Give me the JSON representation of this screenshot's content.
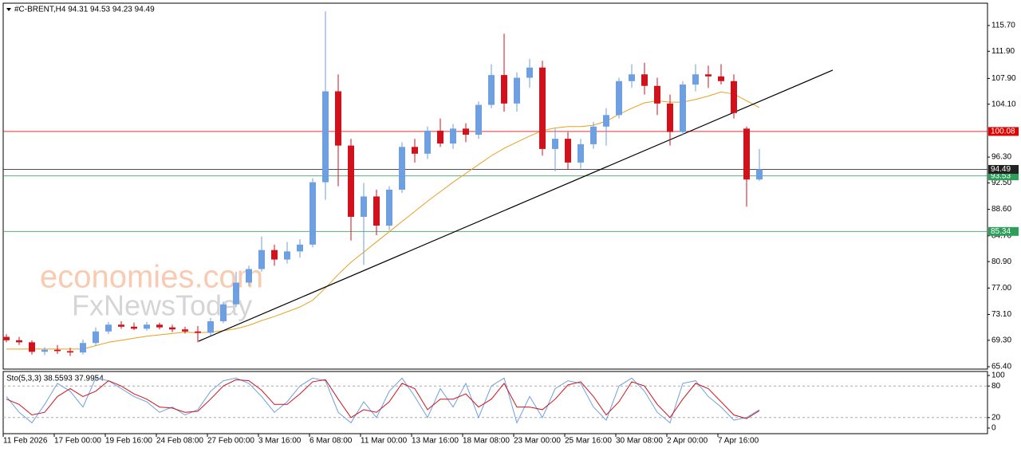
{
  "chart_data": {
    "type": "candlestick",
    "title": "#C-BRENT,H4  94.31 94.53 94.23 94.49",
    "watermark": [
      "economies.com",
      "FxNewsToday"
    ],
    "categories": [
      "11 Feb 2026",
      null,
      null,
      null,
      "17 Feb 00:00",
      null,
      null,
      null,
      "19 Feb 16:00",
      null,
      null,
      null,
      "24 Feb 08:00",
      null,
      null,
      null,
      "27 Feb 00:00",
      null,
      null,
      null,
      "3 Mar 16:00",
      null,
      null,
      null,
      "6 Mar 08:00",
      null,
      null,
      null,
      "11 Mar 00:00",
      null,
      null,
      null,
      "13 Mar 16:00",
      null,
      null,
      null,
      "18 Mar 08:00",
      null,
      null,
      null,
      "23 Mar 00:00",
      null,
      null,
      null,
      "25 Mar 16:00",
      null,
      null,
      null,
      "30 Mar 08:00",
      null,
      null,
      null,
      "2 Apr 00:00",
      null,
      null,
      null,
      "7 Apr 16:00",
      null,
      null,
      null
    ],
    "candles": {
      "up_color": "#6e9fe0",
      "down_color": "#d0121c",
      "open": [
        69.8,
        69.3,
        69.0,
        67.6,
        67.9,
        67.7,
        67.5,
        68.9,
        70.6,
        71.6,
        71.3,
        71.0,
        71.6,
        71.2,
        70.9,
        70.6,
        70.4,
        72.1,
        74.6,
        77.8,
        79.8,
        82.6,
        81.2,
        82.4,
        83.4,
        92.6,
        106.0,
        98.0,
        87.5,
        90.5,
        86.2,
        91.5,
        97.8,
        96.8,
        100.2,
        98.3,
        100.5,
        99.6,
        104.0,
        108.4,
        104.2,
        108.0,
        109.5,
        97.5,
        99.0,
        95.5,
        98.2,
        100.8,
        102.5,
        107.5,
        108.5,
        106.8,
        104.2,
        100.0,
        107.0,
        108.5,
        108.2,
        107.5,
        100.5,
        93.0
      ],
      "high": [
        70.2,
        69.8,
        69.3,
        68.3,
        68.6,
        68.2,
        69.4,
        71.2,
        72.0,
        72.1,
        71.9,
        72.0,
        71.9,
        71.6,
        71.3,
        71.4,
        72.6,
        75.0,
        79.4,
        80.3,
        84.6,
        83.4,
        83.8,
        84.2,
        93.2,
        117.8,
        108.5,
        99.0,
        92.5,
        91.5,
        92.0,
        98.5,
        99.0,
        100.8,
        102.0,
        101.2,
        101.3,
        104.5,
        110.0,
        114.5,
        108.8,
        110.8,
        110.5,
        100.5,
        100.0,
        99.0,
        101.5,
        103.5,
        108.0,
        110.0,
        110.2,
        108.0,
        105.5,
        107.5,
        110.0,
        109.8,
        110.0,
        108.5,
        100.8,
        97.5
      ],
      "low": [
        69.0,
        68.6,
        67.2,
        67.1,
        67.3,
        67.0,
        67.2,
        68.5,
        70.2,
        71.0,
        70.8,
        70.7,
        70.9,
        70.5,
        70.3,
        69.0,
        70.0,
        71.8,
        74.2,
        77.3,
        79.4,
        80.3,
        80.6,
        81.5,
        83.0,
        90.0,
        92.0,
        84.0,
        80.4,
        84.8,
        85.5,
        91.0,
        95.5,
        96.0,
        97.8,
        97.5,
        98.5,
        99.0,
        103.5,
        103.0,
        103.0,
        106.5,
        96.5,
        94.2,
        94.5,
        94.6,
        97.5,
        98.0,
        102.0,
        106.5,
        105.5,
        102.5,
        98.0,
        99.5,
        106.0,
        106.5,
        107.0,
        102.0,
        89.0,
        92.8
      ],
      "close": [
        69.3,
        69.0,
        67.6,
        67.9,
        67.7,
        67.5,
        68.9,
        70.6,
        71.6,
        71.3,
        71.0,
        71.6,
        71.2,
        70.9,
        70.6,
        70.4,
        72.1,
        74.6,
        77.8,
        79.8,
        82.6,
        81.2,
        82.4,
        83.4,
        92.6,
        106.0,
        98.0,
        87.5,
        90.5,
        86.2,
        91.5,
        97.8,
        96.8,
        100.2,
        98.3,
        100.5,
        99.6,
        104.0,
        108.4,
        104.2,
        108.0,
        109.5,
        97.5,
        99.0,
        95.5,
        98.2,
        100.8,
        102.5,
        107.5,
        108.5,
        106.8,
        104.2,
        100.0,
        107.0,
        108.5,
        108.2,
        107.5,
        102.8,
        93.0,
        94.5
      ]
    },
    "moving_average": {
      "color": "#e8a020",
      "values": [
        68,
        68,
        68,
        68,
        68,
        68,
        68,
        68.5,
        69,
        69.3,
        69.6,
        69.9,
        70.1,
        70.3,
        70.5,
        70.4,
        70.5,
        70.7,
        71.0,
        71.5,
        72.2,
        72.8,
        73.5,
        74.2,
        75.2,
        77,
        79,
        80.8,
        82.3,
        83.8,
        85.3,
        86.8,
        88.3,
        89.8,
        91.2,
        92.6,
        93.9,
        95.2,
        96.5,
        97.6,
        98.5,
        99.4,
        100.2,
        100.6,
        100.8,
        100.8,
        101.0,
        101.6,
        102.6,
        103.5,
        104.3,
        104.6,
        104.4,
        104.4,
        104.8,
        105.3,
        105.9,
        105.6,
        104.6,
        103.6
      ]
    },
    "trendline": {
      "color": "#000000",
      "x": [
        15.06,
        64.75
      ],
      "y": [
        69.16,
        109.12
      ]
    },
    "levels": [
      {
        "value": 100.08,
        "color": "#e00000"
      },
      {
        "value": 93.53,
        "color": "#2e9e5b"
      },
      {
        "value": 85.34,
        "color": "#2e9e5b"
      },
      {
        "value": 94.49,
        "color": "#222222"
      }
    ],
    "ylim": [
      65.05,
      118.99
    ],
    "yticks": [
      {
        "value": 115.7,
        "label": "115.70"
      },
      {
        "value": 111.9,
        "label": "111.90"
      },
      {
        "value": 107.9,
        "label": "107.90"
      },
      {
        "value": 104.1,
        "label": "104.10"
      },
      {
        "value": 96.3,
        "label": "96.30"
      },
      {
        "value": 92.5,
        "label": "92.50"
      },
      {
        "value": 88.6,
        "label": "88.60"
      },
      {
        "value": 84.7,
        "label": "84.70"
      },
      {
        "value": 80.9,
        "label": "80.90"
      },
      {
        "value": 77.0,
        "label": "77.00"
      },
      {
        "value": 73.1,
        "label": "73.10"
      },
      {
        "value": 69.3,
        "label": "69.30"
      },
      {
        "value": 65.4,
        "label": "65.40"
      }
    ],
    "stochastic": {
      "label": "Sto(5,3,3) 38.5593 37.9954",
      "ylim": [
        0,
        100
      ],
      "yticks": [
        100,
        80,
        20,
        0
      ],
      "levels": [
        80,
        20
      ],
      "series": [
        {
          "color": "#6e9fe0",
          "values": [
            60,
            30,
            10,
            45,
            85,
            70,
            40,
            95,
            90,
            75,
            60,
            50,
            30,
            40,
            25,
            35,
            70,
            90,
            95,
            85,
            60,
            30,
            50,
            80,
            95,
            90,
            30,
            10,
            50,
            20,
            70,
            95,
            60,
            20,
            75,
            40,
            85,
            20,
            80,
            95,
            10,
            60,
            20,
            75,
            90,
            85,
            40,
            15,
            80,
            95,
            70,
            30,
            10,
            85,
            90,
            60,
            40,
            15,
            20,
            35
          ]
        },
        {
          "color": "#d0121c",
          "values": [
            55,
            45,
            25,
            30,
            60,
            75,
            60,
            70,
            90,
            80,
            65,
            55,
            40,
            38,
            30,
            32,
            55,
            80,
            92,
            90,
            72,
            45,
            45,
            65,
            88,
            92,
            55,
            20,
            35,
            30,
            50,
            85,
            75,
            35,
            55,
            55,
            65,
            40,
            55,
            85,
            40,
            40,
            35,
            55,
            82,
            88,
            60,
            25,
            50,
            88,
            80,
            45,
            20,
            55,
            85,
            75,
            50,
            25,
            18,
            33
          ]
        }
      ]
    }
  }
}
